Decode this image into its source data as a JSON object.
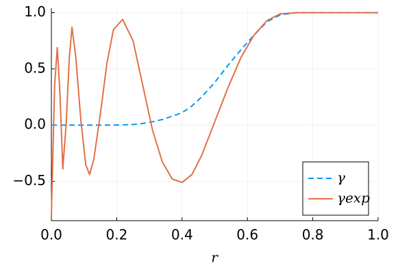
{
  "chart_data": {
    "type": "line",
    "xlabel": "r",
    "x": [
      0,
      0.005,
      0.01,
      0.018,
      0.026,
      0.035,
      0.045,
      0.055,
      0.063,
      0.075,
      0.09,
      0.105,
      0.117,
      0.13,
      0.15,
      0.17,
      0.19,
      0.218,
      0.25,
      0.28,
      0.31,
      0.34,
      0.37,
      0.4,
      0.43,
      0.46,
      0.5,
      0.54,
      0.58,
      0.62,
      0.66,
      0.7,
      0.75,
      0.8,
      0.9,
      1.0
    ],
    "series": [
      {
        "name": "γ",
        "color": "#009af9",
        "dash": true,
        "values": [
          0,
          0,
          0,
          0,
          0,
          0,
          0,
          0,
          0,
          0,
          0,
          0,
          0,
          0,
          0,
          0,
          0,
          0.002,
          0.005,
          0.015,
          0.03,
          0.05,
          0.08,
          0.11,
          0.17,
          0.25,
          0.38,
          0.53,
          0.67,
          0.8,
          0.92,
          0.98,
          1,
          1,
          1,
          1
        ]
      },
      {
        "name": "γexp",
        "color": "#e26f46",
        "dash": false,
        "values": [
          -0.82,
          -0.2,
          0.35,
          0.69,
          0.3,
          -0.39,
          0.0,
          0.6,
          0.87,
          0.6,
          0.05,
          -0.35,
          -0.44,
          -0.3,
          0.1,
          0.55,
          0.85,
          0.94,
          0.75,
          0.35,
          -0.05,
          -0.33,
          -0.48,
          -0.51,
          -0.44,
          -0.27,
          0.03,
          0.33,
          0.6,
          0.8,
          0.93,
          0.99,
          1,
          1,
          1,
          1
        ]
      }
    ],
    "xlim": [
      0,
      1
    ],
    "xticks": [
      {
        "value": 0,
        "label": "0.0"
      },
      0.2,
      0.4,
      0.6,
      0.8,
      {
        "value": 1,
        "label": "1.0"
      }
    ],
    "ylim": [
      -0.85,
      1.04
    ],
    "yticks": [
      {
        "value": -0.5,
        "label": "−0.5"
      },
      {
        "value": 0,
        "label": "0.0"
      },
      0.5,
      {
        "value": 1,
        "label": "1.0"
      }
    ],
    "grid": true,
    "legend": "bottom-right"
  }
}
